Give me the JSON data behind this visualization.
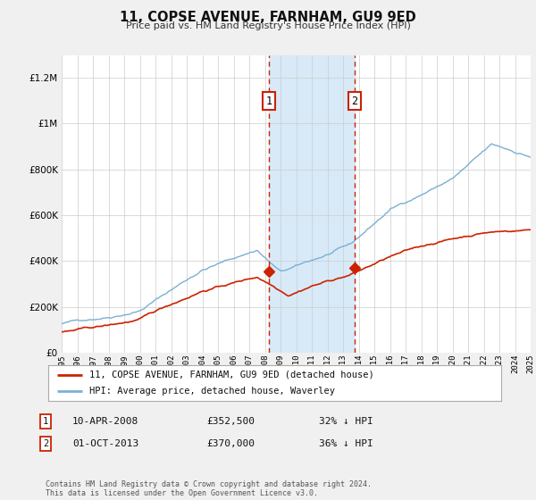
{
  "title": "11, COPSE AVENUE, FARNHAM, GU9 9ED",
  "subtitle": "Price paid vs. HM Land Registry's House Price Index (HPI)",
  "legend_line1": "11, COPSE AVENUE, FARNHAM, GU9 9ED (detached house)",
  "legend_line2": "HPI: Average price, detached house, Waverley",
  "sale1_date": "10-APR-2008",
  "sale1_price": 352500,
  "sale1_pct": "32% ↓ HPI",
  "sale2_date": "01-OCT-2013",
  "sale2_price": 370000,
  "sale2_pct": "36% ↓ HPI",
  "footer": "Contains HM Land Registry data © Crown copyright and database right 2024.\nThis data is licensed under the Open Government Licence v3.0.",
  "hpi_color": "#7bafd4",
  "price_color": "#cc2200",
  "bg_color": "#f0f0f0",
  "plot_bg": "#ffffff",
  "shade_color": "#d8eaf8",
  "grid_color": "#cccccc",
  "ylim": [
    0,
    1300000
  ],
  "yticks": [
    0,
    200000,
    400000,
    600000,
    800000,
    1000000,
    1200000
  ],
  "ytick_labels": [
    "£0",
    "£200K",
    "£400K",
    "£600K",
    "£800K",
    "£1M",
    "£1.2M"
  ],
  "x_start_year": 1995,
  "x_end_year": 2025,
  "sale1_year": 2008.27,
  "sale2_year": 2013.75
}
